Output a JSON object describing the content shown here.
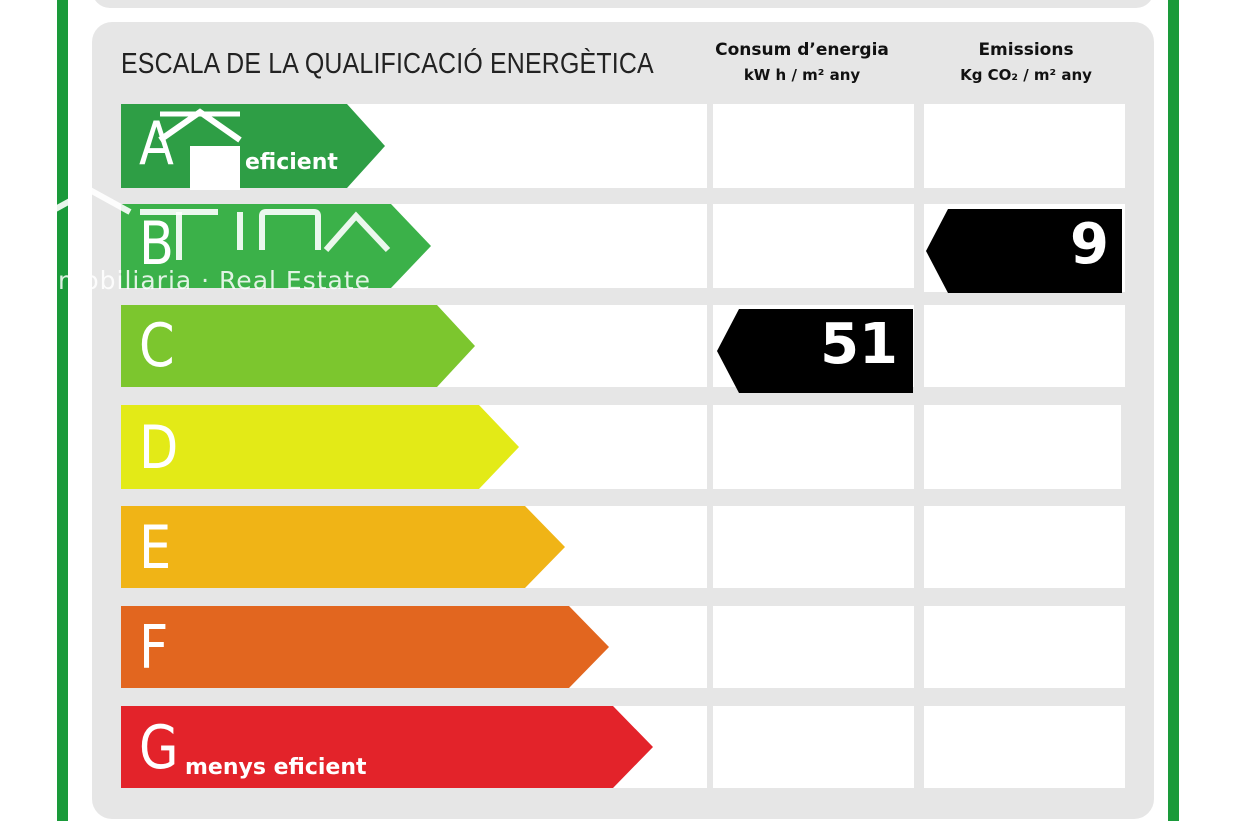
{
  "colors": {
    "frame_green": "#1a9a3a",
    "panel_gray": "#e6e6e6",
    "tag_black": "#000000"
  },
  "header": {
    "title": "ESCALA DE LA QUALIFICACIÓ ENERGÈTICA",
    "consum_line1": "Consum d’energia",
    "consum_line2": "kW h / m² any",
    "emissions_line1": "Emissions",
    "emissions_line2": "Kg CO₂ / m² any"
  },
  "ratings": [
    {
      "letter": "A",
      "label": "eficient",
      "color": "#2e9e45"
    },
    {
      "letter": "B",
      "label": "",
      "color": "#3bb149"
    },
    {
      "letter": "C",
      "label": "",
      "color": "#7cc62e"
    },
    {
      "letter": "D",
      "label": "",
      "color": "#e3ea17"
    },
    {
      "letter": "E",
      "label": "",
      "color": "#f0b416"
    },
    {
      "letter": "F",
      "label": "",
      "color": "#e2661f"
    },
    {
      "letter": "G",
      "label": "menys eficient",
      "color": "#e3232a"
    }
  ],
  "values": {
    "consum": {
      "value": "51",
      "rating": "C"
    },
    "emissions": {
      "value": "9",
      "rating": "B"
    }
  },
  "watermark": {
    "text": "mobiliaria · Real Estate",
    "logo_letters": "TINA"
  }
}
